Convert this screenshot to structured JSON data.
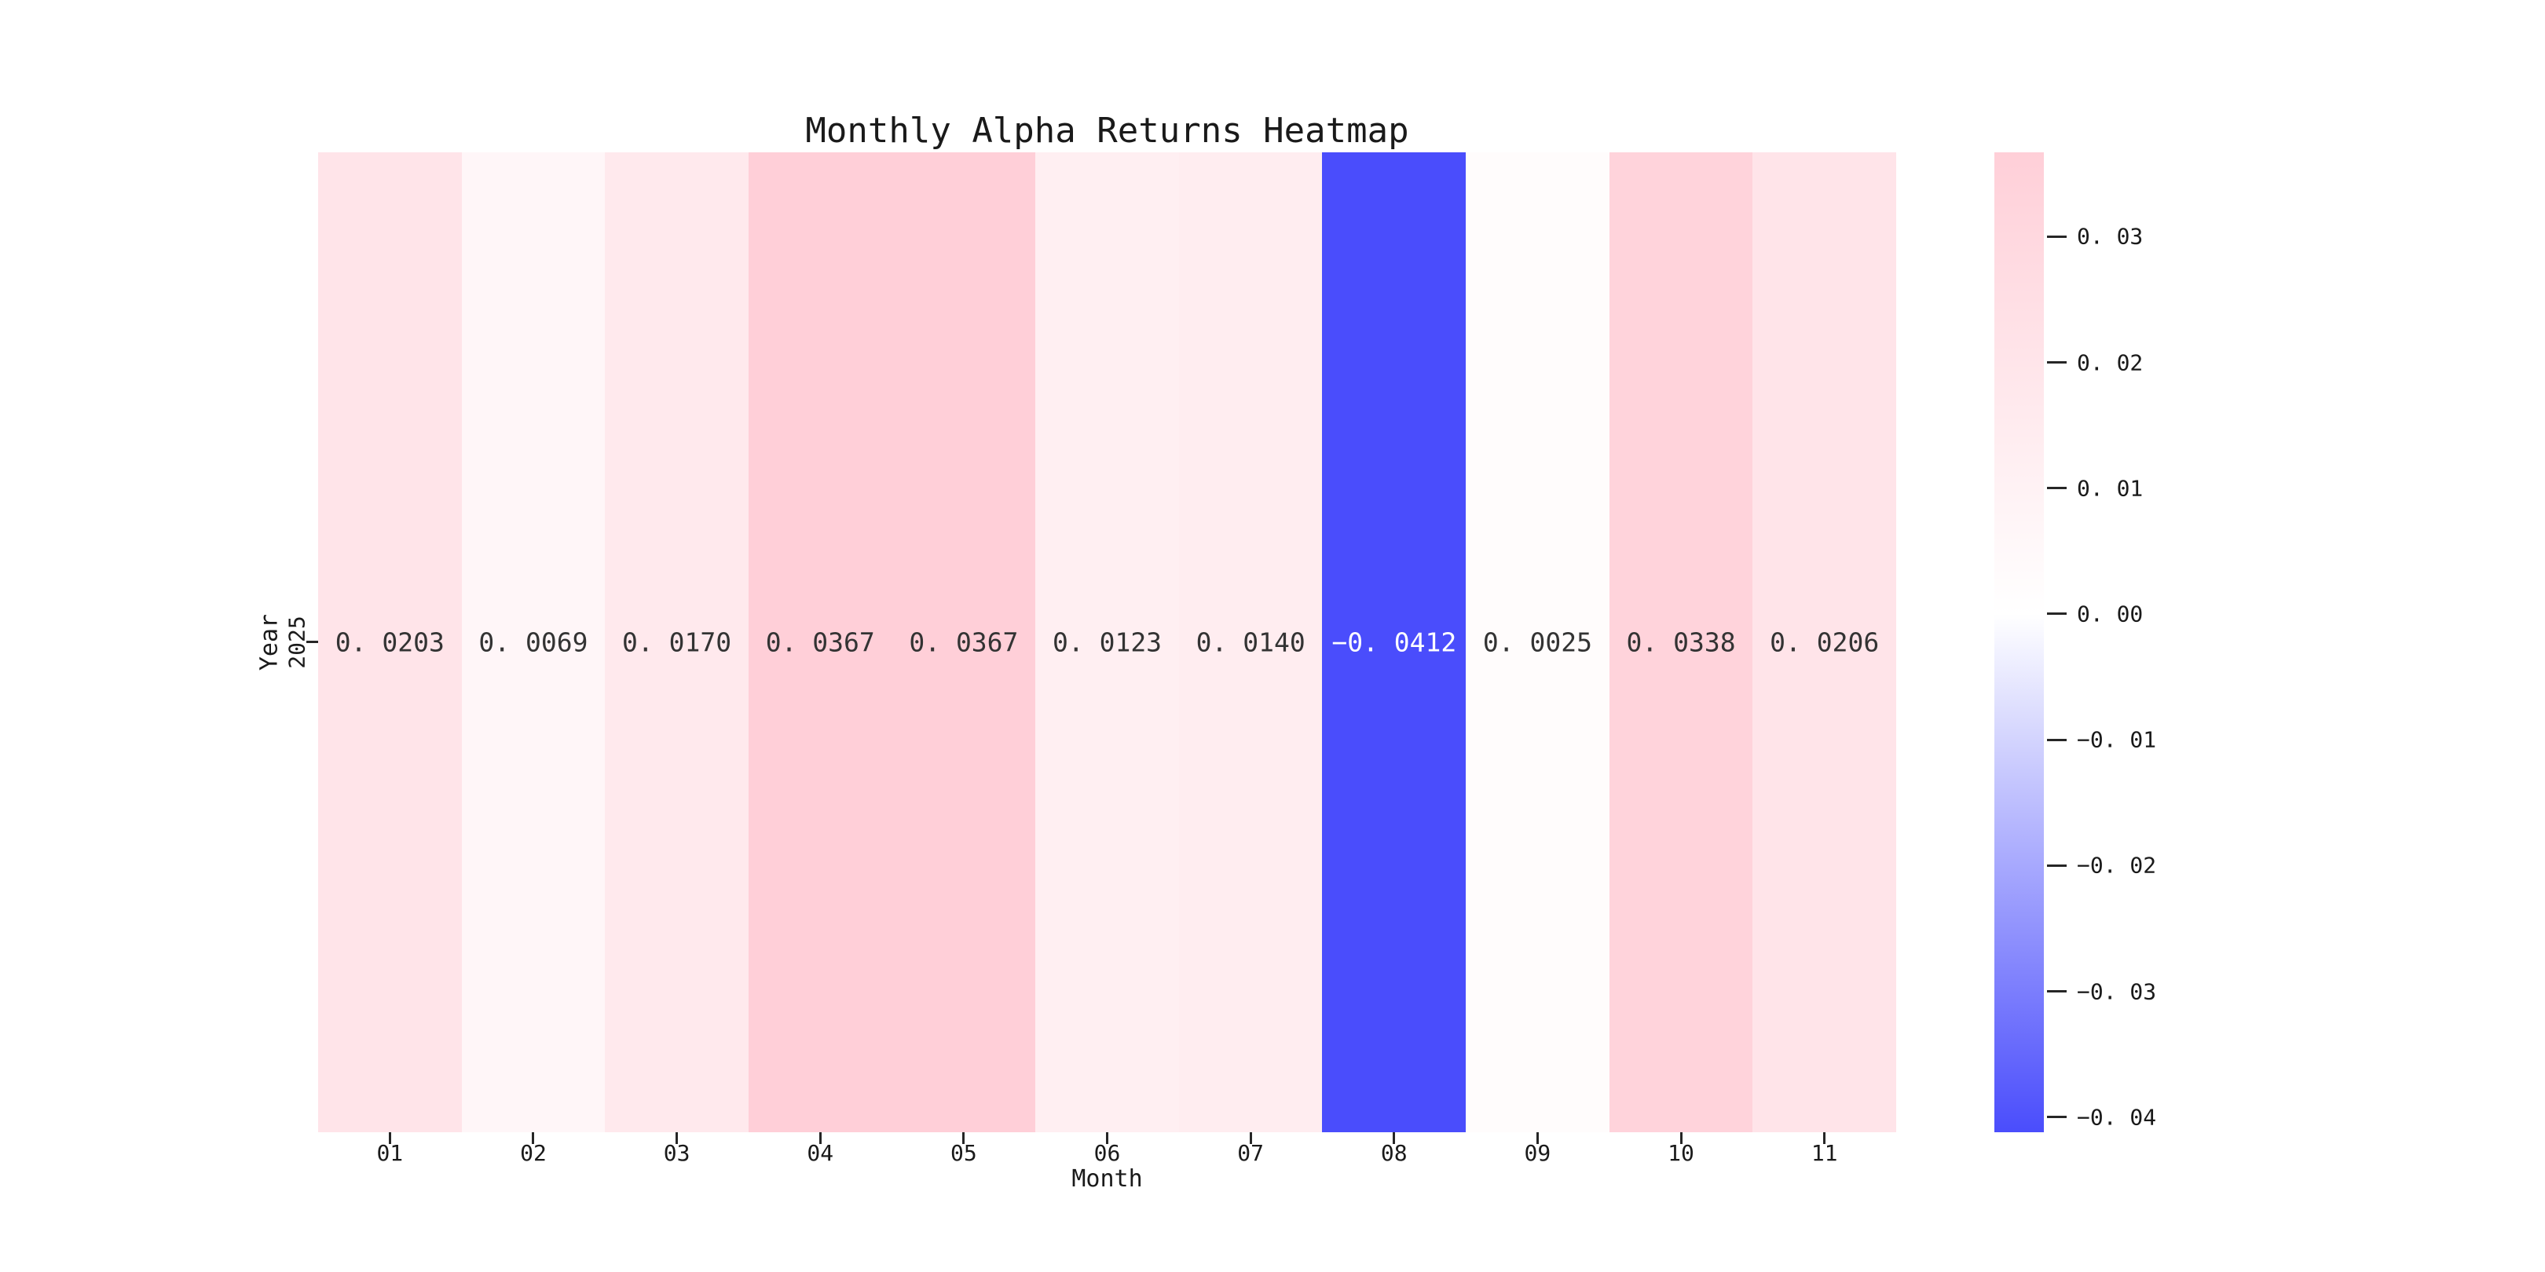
{
  "figure": {
    "background": "#ffffff"
  },
  "chart_data": {
    "type": "heatmap",
    "title": "Monthly Alpha Returns Heatmap",
    "xlabel": "Month",
    "ylabel": "Year",
    "rows": [
      "2025"
    ],
    "columns": [
      "01",
      "02",
      "03",
      "04",
      "05",
      "06",
      "07",
      "08",
      "09",
      "10",
      "11"
    ],
    "values": [
      [
        0.0203,
        0.0069,
        0.017,
        0.0367,
        0.0367,
        0.0123,
        0.014,
        -0.0412,
        0.0025,
        0.0338,
        0.0206
      ]
    ],
    "cell_labels": [
      [
        "0. 0203",
        "0. 0069",
        "0. 0170",
        "0. 0367",
        "0. 0367",
        "0. 0123",
        "0. 0140",
        "−0. 0412",
        "0. 0025",
        "0. 0338",
        "0. 0206"
      ]
    ],
    "vmin": -0.0412,
    "vmax": 0.0367,
    "grid": false,
    "colormap": {
      "negative_end": "#4a4dfc",
      "zero": "#ffffff",
      "positive_end": "#ffcfd8"
    },
    "cell_text_dark": "#333333",
    "cell_text_light": "#ffffff",
    "colorbar": {
      "tick_values": [
        0.03,
        0.02,
        0.01,
        0.0,
        -0.01,
        -0.02,
        -0.03,
        -0.04
      ],
      "tick_labels": [
        "0. 03",
        "0. 02",
        "0. 01",
        "0. 00",
        "−0. 01",
        "−0. 02",
        "−0. 03",
        "−0. 04"
      ]
    }
  }
}
